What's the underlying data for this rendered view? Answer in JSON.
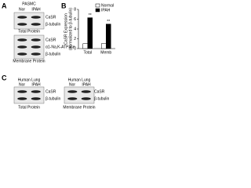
{
  "panels": {
    "a": {
      "letter": "A",
      "cell": "PASMC",
      "lanes": [
        "Nor",
        "IPAH"
      ],
      "blots": [
        {
          "bands": [
            "CaSR",
            "β-tubulin"
          ],
          "caption": "Total Protein"
        },
        {
          "bands": [
            "CaSR",
            "α1-Na,K-ATPase",
            "β-tubulin"
          ],
          "caption": "Membrane Protein"
        }
      ]
    },
    "c": {
      "letter": "C",
      "blots": [
        {
          "tissue": "Human Lung",
          "lanes": [
            "Nor",
            "IPAH"
          ],
          "bands": [
            "CaSR",
            "β-tubulin"
          ],
          "caption": "Total Protein"
        },
        {
          "tissue": "Human Lung",
          "lanes": [
            "Nor",
            "IPAH"
          ],
          "bands": [
            "CaSR",
            "β-tubulin"
          ],
          "caption": "Membrane Protein"
        }
      ]
    }
  },
  "chart_data": {
    "type": "bar",
    "letter": "B",
    "y_label": "CaSR Expression",
    "y_sublabel": "(normalized to β-tubulin)",
    "categories": [
      "Total",
      "Memb"
    ],
    "series": [
      {
        "name": "Normal",
        "color": "#ffffff",
        "values": [
          1,
          1
        ]
      },
      {
        "name": "IPAH",
        "color": "#000000",
        "values": [
          6.3,
          5
        ]
      }
    ],
    "annotations": [
      "**",
      "**"
    ],
    "ylim": [
      0,
      8
    ],
    "yticks": [
      0,
      2,
      4,
      6,
      8
    ],
    "legend": "top-right"
  }
}
